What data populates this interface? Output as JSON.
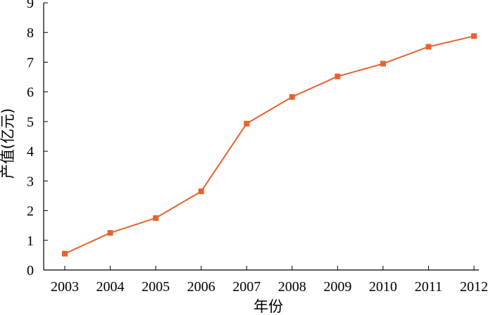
{
  "chart_data": {
    "type": "line",
    "xlabel": "年份",
    "ylabel": "产值(亿元)",
    "x": [
      "2003",
      "2004",
      "2005",
      "2006",
      "2007",
      "2008",
      "2009",
      "2010",
      "2011",
      "2012"
    ],
    "series": [
      {
        "values": [
          0.55,
          1.25,
          1.75,
          2.65,
          4.93,
          5.83,
          6.52,
          6.95,
          7.52,
          7.88
        ]
      }
    ],
    "ylim": [
      0,
      9
    ],
    "yticks": [
      0,
      1,
      2,
      3,
      4,
      5,
      6,
      7,
      8,
      9
    ],
    "grid": false,
    "colors": {
      "series": "#e8622e",
      "axis": "#000000"
    }
  }
}
